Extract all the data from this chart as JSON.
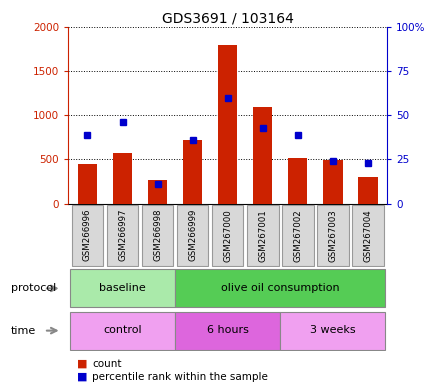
{
  "title": "GDS3691 / 103164",
  "samples": [
    "GSM266996",
    "GSM266997",
    "GSM266998",
    "GSM266999",
    "GSM267000",
    "GSM267001",
    "GSM267002",
    "GSM267003",
    "GSM267004"
  ],
  "count_values": [
    450,
    575,
    270,
    720,
    1800,
    1090,
    520,
    490,
    300
  ],
  "percentile_values": [
    39,
    46,
    11,
    36,
    60,
    43,
    39,
    24,
    23
  ],
  "ylim_left": [
    0,
    2000
  ],
  "ylim_right": [
    0,
    100
  ],
  "yticks_left": [
    0,
    500,
    1000,
    1500,
    2000
  ],
  "yticks_right": [
    0,
    25,
    50,
    75,
    100
  ],
  "yticklabels_left": [
    "0",
    "500",
    "1000",
    "1500",
    "2000"
  ],
  "yticklabels_right": [
    "0",
    "25",
    "50",
    "75",
    "100%"
  ],
  "bar_color": "#cc2200",
  "dot_color": "#0000cc",
  "protocol_groups": [
    {
      "label": "baseline",
      "start": 0,
      "end": 3,
      "color": "#aaeaaa"
    },
    {
      "label": "olive oil consumption",
      "start": 3,
      "end": 9,
      "color": "#55cc55"
    }
  ],
  "time_groups": [
    {
      "label": "control",
      "start": 0,
      "end": 3,
      "color": "#f0a0f0"
    },
    {
      "label": "6 hours",
      "start": 3,
      "end": 6,
      "color": "#dd66dd"
    },
    {
      "label": "3 weeks",
      "start": 6,
      "end": 9,
      "color": "#f0a0f0"
    }
  ],
  "legend_count_label": "count",
  "legend_pct_label": "percentile rank within the sample",
  "protocol_label": "protocol",
  "time_label": "time",
  "left_tick_color": "#cc2200",
  "right_tick_color": "#0000cc",
  "sample_box_color": "#d8d8d8"
}
